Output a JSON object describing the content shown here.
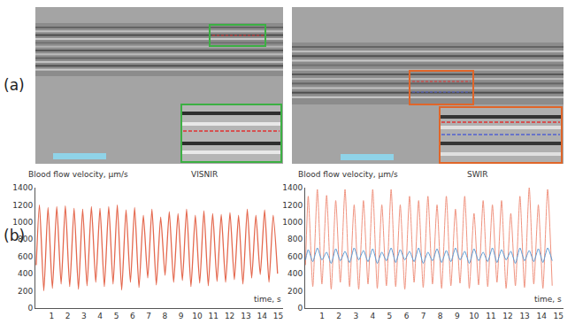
{
  "panel_labels": [
    "(a)",
    "(b)"
  ],
  "chart_data": [
    {
      "type": "line",
      "y_label": "Blood flow velocity, μm/s",
      "x_label": "time, s",
      "annotations": [
        "VISNIR"
      ],
      "xlim": [
        0,
        15.3
      ],
      "xticks": [
        1,
        2,
        3,
        4,
        5,
        6,
        7,
        8,
        9,
        10,
        11,
        12,
        13,
        14,
        15
      ],
      "ylim": [
        0,
        1400
      ],
      "yticks": [
        0,
        200,
        400,
        600,
        800,
        1000,
        1200,
        1400
      ],
      "grid": false,
      "series": [
        {
          "color": "#e4684e",
          "x": [
            0.05,
            0.25,
            0.52,
            0.78,
            1.05,
            1.32,
            1.59,
            1.85,
            2.12,
            2.39,
            2.66,
            2.92,
            3.19,
            3.46,
            3.73,
            3.99,
            4.26,
            4.53,
            4.8,
            5.06,
            5.33,
            5.6,
            5.87,
            6.13,
            6.4,
            6.67,
            6.94,
            7.2,
            7.47,
            7.74,
            8.01,
            8.27,
            8.54,
            8.81,
            9.08,
            9.34,
            9.61,
            9.88,
            10.15,
            10.41,
            10.68,
            10.95,
            11.22,
            11.48,
            11.75,
            12.02,
            12.29,
            12.55,
            12.82,
            13.09,
            13.36,
            13.62,
            13.89,
            14.16,
            14.43,
            14.69,
            14.96
          ],
          "values": [
            500,
            1200,
            200,
            1170,
            230,
            1180,
            280,
            1190,
            250,
            1160,
            220,
            1150,
            260,
            1180,
            300,
            1160,
            250,
            1180,
            280,
            1200,
            210,
            1140,
            300,
            1170,
            240,
            1080,
            350,
            1150,
            270,
            1060,
            380,
            1120,
            300,
            1100,
            320,
            1150,
            250,
            1080,
            290,
            1130,
            260,
            1100,
            310,
            1090,
            300,
            1110,
            330,
            1080,
            280,
            1150,
            350,
            1080,
            390,
            1140,
            300,
            1080,
            400
          ]
        }
      ]
    },
    {
      "type": "line",
      "y_label": "Blood flow velocity, μm/s",
      "x_label": "time, s",
      "annotations": [
        "SWIR"
      ],
      "xlim": [
        0,
        15.3
      ],
      "xticks": [
        1,
        2,
        3,
        4,
        5,
        6,
        7,
        8,
        9,
        10,
        11,
        12,
        13,
        14,
        15
      ],
      "ylim": [
        0,
        1400
      ],
      "yticks": [
        0,
        200,
        400,
        600,
        800,
        1000,
        1200,
        1400
      ],
      "grid": false,
      "series": [
        {
          "color": "#f0937f",
          "x": [
            0.02,
            0.18,
            0.45,
            0.72,
            0.99,
            1.27,
            1.54,
            1.81,
            2.08,
            2.36,
            2.63,
            2.9,
            3.17,
            3.45,
            3.72,
            4.0,
            4.27,
            4.54,
            4.81,
            5.09,
            5.36,
            5.63,
            5.9,
            6.18,
            6.45,
            6.72,
            6.99,
            7.27,
            7.54,
            7.81,
            8.08,
            8.36,
            8.63,
            8.9,
            9.17,
            9.45,
            9.72,
            10.0,
            10.27,
            10.54,
            10.81,
            11.09,
            11.36,
            11.63,
            11.9,
            12.18,
            12.45,
            12.72,
            12.99,
            13.27,
            13.54,
            13.81,
            14.08,
            14.36,
            14.63
          ],
          "values": [
            500,
            1300,
            250,
            1380,
            280,
            1310,
            220,
            1250,
            300,
            1380,
            250,
            1200,
            220,
            1250,
            280,
            1380,
            230,
            1200,
            260,
            1380,
            250,
            1200,
            220,
            1300,
            300,
            1250,
            240,
            1300,
            280,
            1200,
            230,
            1300,
            260,
            1150,
            290,
            1300,
            230,
            1100,
            270,
            1250,
            250,
            1200,
            300,
            1250,
            230,
            1100,
            260,
            1300,
            240,
            1400,
            280,
            1200,
            230,
            1380,
            260
          ]
        },
        {
          "color": "#5b9bd5",
          "x": [
            0.02,
            0.18,
            0.45,
            0.72,
            0.99,
            1.27,
            1.54,
            1.81,
            2.08,
            2.36,
            2.63,
            2.9,
            3.17,
            3.45,
            3.72,
            4.0,
            4.27,
            4.54,
            4.81,
            5.09,
            5.36,
            5.63,
            5.9,
            6.18,
            6.45,
            6.72,
            6.99,
            7.27,
            7.54,
            7.81,
            8.08,
            8.36,
            8.63,
            8.9,
            9.17,
            9.45,
            9.72,
            10.0,
            10.27,
            10.54,
            10.81,
            11.09,
            11.36,
            11.63,
            11.9,
            12.18,
            12.45,
            12.72,
            12.99,
            13.27,
            13.54,
            13.81,
            14.08,
            14.36,
            14.63
          ],
          "values": [
            560,
            680,
            540,
            700,
            560,
            650,
            520,
            690,
            550,
            660,
            530,
            700,
            560,
            670,
            540,
            690,
            520,
            650,
            550,
            700,
            530,
            680,
            560,
            660,
            540,
            700,
            520,
            650,
            550,
            690,
            530,
            670,
            540,
            700,
            560,
            660,
            520,
            690,
            550,
            650,
            540,
            700,
            530,
            680,
            560,
            660,
            520,
            700,
            550,
            670,
            540,
            690,
            530,
            700,
            550
          ]
        }
      ]
    }
  ]
}
